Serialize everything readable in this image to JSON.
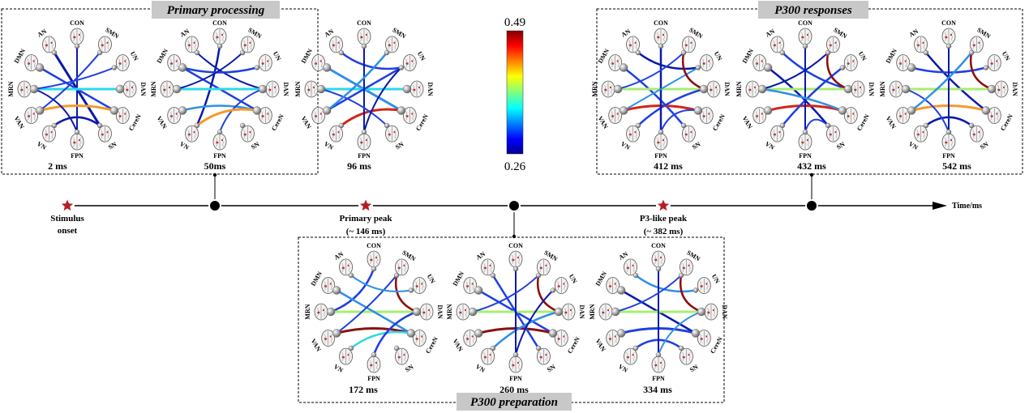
{
  "sections": {
    "primary": {
      "title": "Primary processing",
      "times": [
        "2 ms",
        "50ms",
        "96 ms"
      ]
    },
    "p300resp": {
      "title": "P300 responses",
      "times": [
        "412 ms",
        "432 ms",
        "542 ms"
      ]
    },
    "p300prep": {
      "title": "P300 preparation",
      "times": [
        "172 ms",
        "260 ms",
        "334 ms"
      ]
    }
  },
  "networks": [
    "CON",
    "SMN",
    "UN",
    "DAN",
    "CereN",
    "SN",
    "FPN",
    "VN",
    "VAN",
    "MRN",
    "DMN",
    "AN"
  ],
  "colorbar": {
    "max": "0.49",
    "min": "0.26"
  },
  "timeline": {
    "axis_label": "Time/ms",
    "events": {
      "onset": [
        "Stimulus",
        "onset"
      ],
      "primary_peak": [
        "Primary peak",
        "(~ 146 ms)"
      ],
      "p3_peak": [
        "P3-like peak",
        "(~ 382 ms)"
      ]
    }
  },
  "colors": {
    "star": "#b81c24",
    "title_bg": "#c8c8c8",
    "node": "#a8a8a8"
  }
}
